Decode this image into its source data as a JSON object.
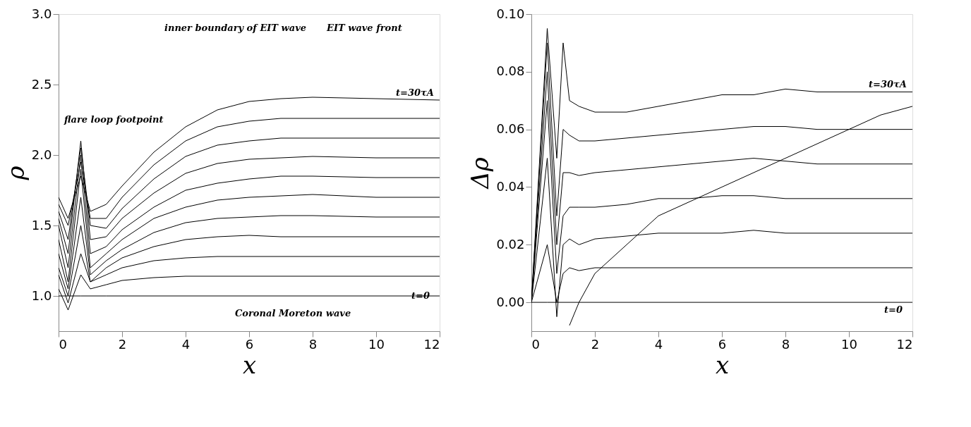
{
  "chart_data": [
    {
      "type": "line",
      "xlabel": "x",
      "ylabel": "ρ",
      "xlim": [
        0,
        12
      ],
      "xticks": [
        0,
        2,
        4,
        6,
        8,
        10,
        12
      ],
      "ylim": [
        0.75,
        3.0
      ],
      "yticks": [
        {
          "value": 1.0,
          "label": "1.0"
        },
        {
          "value": 1.5,
          "label": "1.5"
        },
        {
          "value": 2.0,
          "label": "2.0"
        },
        {
          "value": 2.5,
          "label": "2.5"
        },
        {
          "value": 3.0,
          "label": "3.0"
        }
      ],
      "grid": false,
      "marker": "none",
      "line_style": "solid",
      "x": [
        0,
        0.3,
        0.7,
        1,
        1.5,
        2,
        3,
        4,
        5,
        6,
        7,
        8,
        10,
        12
      ],
      "series": [
        {
          "color": "#000000",
          "values": [
            1.0,
            1.0,
            1.0,
            1.0,
            1.0,
            1.0,
            1.0,
            1.0,
            1.0,
            1.0,
            1.0,
            1.0,
            1.0,
            1.0
          ]
        },
        {
          "color": "#000000",
          "values": [
            1.05,
            0.9,
            1.15,
            1.05,
            1.08,
            1.11,
            1.13,
            1.14,
            1.14,
            1.14,
            1.14,
            1.14,
            1.14,
            1.14
          ]
        },
        {
          "color": "#000000",
          "values": [
            1.15,
            0.95,
            1.3,
            1.1,
            1.15,
            1.2,
            1.25,
            1.27,
            1.28,
            1.28,
            1.28,
            1.28,
            1.28,
            1.28
          ]
        },
        {
          "color": "#000000",
          "values": [
            1.2,
            1.0,
            1.5,
            1.1,
            1.2,
            1.27,
            1.35,
            1.4,
            1.42,
            1.43,
            1.42,
            1.42,
            1.42,
            1.42
          ]
        },
        {
          "color": "#000000",
          "values": [
            1.3,
            1.05,
            1.7,
            1.15,
            1.25,
            1.33,
            1.45,
            1.52,
            1.55,
            1.56,
            1.57,
            1.57,
            1.56,
            1.56
          ]
        },
        {
          "color": "#000000",
          "values": [
            1.4,
            1.1,
            1.9,
            1.2,
            1.3,
            1.4,
            1.55,
            1.63,
            1.68,
            1.7,
            1.71,
            1.72,
            1.7,
            1.7
          ]
        },
        {
          "color": "#000000",
          "values": [
            1.5,
            1.2,
            2.0,
            1.3,
            1.35,
            1.47,
            1.63,
            1.75,
            1.8,
            1.83,
            1.85,
            1.85,
            1.84,
            1.84
          ]
        },
        {
          "color": "#000000",
          "values": [
            1.55,
            1.3,
            2.1,
            1.4,
            1.42,
            1.55,
            1.73,
            1.87,
            1.94,
            1.97,
            1.98,
            1.99,
            1.98,
            1.98
          ]
        },
        {
          "color": "#000000",
          "values": [
            1.6,
            1.4,
            2.05,
            1.5,
            1.48,
            1.62,
            1.83,
            1.99,
            2.07,
            2.1,
            2.12,
            2.12,
            2.12,
            2.12
          ]
        },
        {
          "color": "#000000",
          "values": [
            1.65,
            1.5,
            1.95,
            1.55,
            1.55,
            1.7,
            1.93,
            2.1,
            2.2,
            2.24,
            2.26,
            2.26,
            2.26,
            2.26
          ]
        },
        {
          "color": "#000000",
          "values": [
            1.7,
            1.55,
            1.85,
            1.6,
            1.65,
            1.78,
            2.02,
            2.2,
            2.32,
            2.38,
            2.4,
            2.41,
            2.4,
            2.39
          ]
        }
      ],
      "annotations": [
        "flare loop footpoint",
        "inner boundary of EIT wave",
        "EIT wave front",
        "Coronal Moreton wave",
        "t=30τA",
        "t=0"
      ]
    },
    {
      "type": "line",
      "xlabel": "x",
      "ylabel": "Δρ",
      "xlim": [
        0,
        12
      ],
      "xticks": [
        0,
        2,
        4,
        6,
        8,
        10,
        12
      ],
      "ylim": [
        -0.01,
        0.1
      ],
      "yticks": [
        {
          "value": 0.0,
          "label": "0.00"
        },
        {
          "value": 0.02,
          "label": "0.02"
        },
        {
          "value": 0.04,
          "label": "0.04"
        },
        {
          "value": 0.06,
          "label": "0.06"
        },
        {
          "value": 0.08,
          "label": "0.08"
        },
        {
          "value": 0.1,
          "label": "0.10"
        }
      ],
      "grid": false,
      "marker": "none",
      "line_style": "solid",
      "x": [
        0,
        0.5,
        0.8,
        1.0,
        1.2,
        1.5,
        2,
        3,
        4,
        5,
        6,
        7,
        8,
        9,
        10,
        11,
        12
      ],
      "series": [
        {
          "color": "#000000",
          "values": [
            0.0,
            0.0,
            0.0,
            0.0,
            0.0,
            0.0,
            0.0,
            0.0,
            0.0,
            0.0,
            0.0,
            0.0,
            0.0,
            0.0,
            0.0,
            0.0,
            0.0
          ]
        },
        {
          "color": "#000000",
          "values": [
            0.0,
            0.02,
            0.0,
            0.01,
            0.012,
            0.011,
            0.012,
            0.012,
            0.012,
            0.012,
            0.012,
            0.012,
            0.012,
            0.012,
            0.012,
            0.012,
            0.012
          ]
        },
        {
          "color": "#000000",
          "values": [
            0.0,
            0.05,
            -0.005,
            0.02,
            0.022,
            0.02,
            0.022,
            0.023,
            0.024,
            0.024,
            0.024,
            0.025,
            0.024,
            0.024,
            0.024,
            0.024,
            0.024
          ]
        },
        {
          "color": "#000000",
          "values": [
            0.0,
            0.07,
            0.01,
            0.03,
            0.033,
            0.033,
            0.033,
            0.034,
            0.036,
            0.036,
            0.037,
            0.037,
            0.036,
            0.036,
            0.036,
            0.036,
            0.036
          ]
        },
        {
          "color": "#000000",
          "values": [
            0.0,
            0.08,
            0.02,
            0.045,
            0.045,
            0.044,
            0.045,
            0.046,
            0.047,
            0.048,
            0.049,
            0.05,
            0.049,
            0.048,
            0.048,
            0.048,
            0.048
          ]
        },
        {
          "color": "#000000",
          "values": [
            0.0,
            0.09,
            0.03,
            0.06,
            0.058,
            0.056,
            0.056,
            0.057,
            0.058,
            0.059,
            0.06,
            0.061,
            0.061,
            0.06,
            0.06,
            0.06,
            0.06
          ]
        },
        {
          "color": "#000000",
          "values": [
            0.0,
            0.095,
            0.05,
            0.09,
            0.07,
            0.068,
            0.066,
            0.066,
            0.068,
            0.07,
            0.072,
            0.072,
            0.074,
            0.073,
            0.073,
            0.073,
            0.073
          ]
        },
        {
          "color": "#000000",
          "x": [
            1.2,
            1.5,
            2,
            3,
            4,
            5,
            6,
            7,
            8,
            9,
            10,
            11,
            12
          ],
          "values": [
            -0.008,
            0.0,
            0.01,
            0.02,
            0.03,
            0.035,
            0.04,
            0.045,
            0.05,
            0.055,
            0.06,
            0.065,
            0.068
          ]
        }
      ],
      "annotations": [
        "t=30τA",
        "t=0"
      ]
    }
  ]
}
